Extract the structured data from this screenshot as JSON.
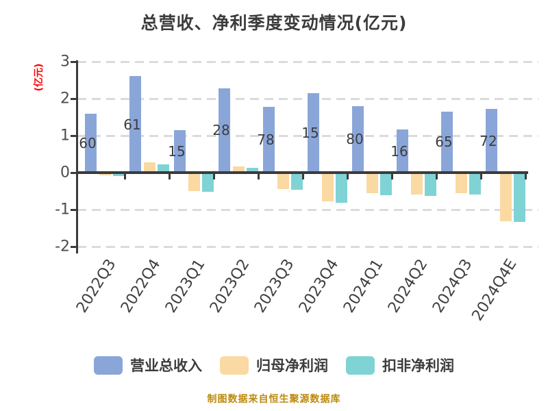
{
  "title": "总营收、净利季度变动情况(亿元)",
  "ylabel": "(亿元)",
  "footer": "制图数据来自恒生聚源数据库",
  "colors": {
    "revenue_bar": "#8AA6D9",
    "net_profit_bar": "#FBD9A3",
    "non_gaap_bar": "#7FD3D5",
    "title_text": "#3C3C3C",
    "ylabel_text": "#FF0000",
    "footer_text": "#BC8A0E",
    "axis": "#3B3B3B",
    "gridline": "#DBDBDB",
    "tick_text": "#4D4D4D"
  },
  "chart_data": {
    "type": "bar",
    "title": "总营收、净利季度变动情况(亿元)",
    "xlabel": "",
    "ylabel": "(亿元)",
    "ylim": [
      -2,
      3
    ],
    "yticks": [
      3,
      2,
      1,
      0,
      -1,
      -2
    ],
    "grid": "horizontal dashed gridlines at 3, 2, 1, -1, -2; solid dark zero line",
    "legend_position": "bottom",
    "categories": [
      "2022Q3",
      "2022Q4",
      "2023Q1",
      "2023Q2",
      "2023Q3",
      "2023Q4",
      "2024Q1",
      "2024Q2",
      "2024Q3",
      "2024Q4E"
    ],
    "series": [
      {
        "key": "revenue",
        "name": "营业总收入",
        "color": "#8AA6D9",
        "values": [
          1.6,
          2.61,
          1.15,
          2.28,
          1.78,
          2.15,
          1.8,
          1.16,
          1.65,
          1.72
        ],
        "bar_value_labels_as_shown": [
          "60",
          "61",
          "15",
          "28",
          "78",
          "15",
          "80",
          "16",
          "65",
          "72"
        ]
      },
      {
        "key": "net-profit",
        "name": "归母净利润",
        "color": "#FBD9A3",
        "values": [
          -0.08,
          0.28,
          -0.5,
          0.17,
          -0.45,
          -0.78,
          -0.55,
          -0.59,
          -0.55,
          -1.31
        ],
        "bar_value_labels_as_shown": []
      },
      {
        "key": "non-gaap-profit",
        "name": "扣非净利润",
        "color": "#7FD3D5",
        "values": [
          -0.1,
          0.22,
          -0.51,
          0.13,
          -0.46,
          -0.82,
          -0.62,
          -0.63,
          -0.59,
          -1.33
        ],
        "bar_value_labels_as_shown": []
      }
    ]
  }
}
